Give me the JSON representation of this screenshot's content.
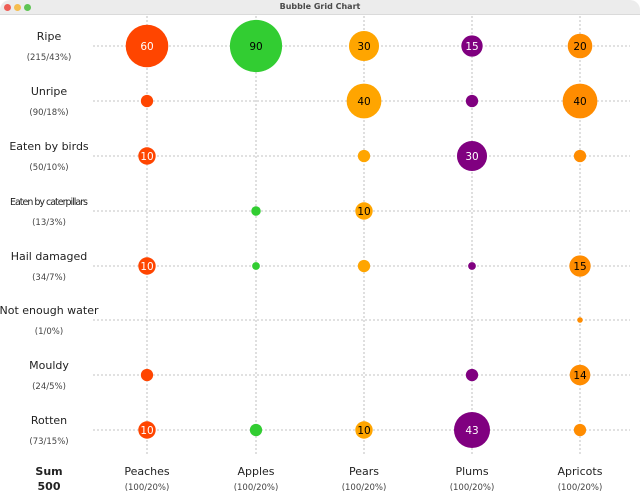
{
  "window": {
    "title": "Bubble Grid Chart"
  },
  "chart_data": {
    "type": "bubble-grid",
    "title": "Bubble Grid Chart",
    "rows": [
      {
        "label": "Ripe",
        "summary": "(215/43%)"
      },
      {
        "label": "Unripe",
        "summary": "(90/18%)"
      },
      {
        "label": "Eaten by birds",
        "summary": "(50/10%)"
      },
      {
        "label": "Eaten by caterpillars",
        "summary": "(13/3%)"
      },
      {
        "label": "Hail damaged",
        "summary": "(34/7%)"
      },
      {
        "label": "Not enough water",
        "summary": "(1/0%)"
      },
      {
        "label": "Mouldy",
        "summary": "(24/5%)"
      },
      {
        "label": "Rotten",
        "summary": "(73/15%)"
      }
    ],
    "columns": [
      {
        "label": "Peaches",
        "summary": "(100/20%)",
        "color": "#FF4500",
        "text_color": "#ffffff"
      },
      {
        "label": "Apples",
        "summary": "(100/20%)",
        "color": "#32CD32",
        "text_color": "#000000"
      },
      {
        "label": "Pears",
        "summary": "(100/20%)",
        "color": "#FFA500",
        "text_color": "#000000"
      },
      {
        "label": "Plums",
        "summary": "(100/20%)",
        "color": "#800080",
        "text_color": "#ffffff"
      },
      {
        "label": "Apricots",
        "summary": "(100/20%)",
        "color": "#FF8C00",
        "text_color": "#000000"
      }
    ],
    "values": [
      [
        60,
        90,
        30,
        15,
        20
      ],
      [
        5,
        0,
        40,
        5,
        40
      ],
      [
        10,
        0,
        5,
        30,
        5
      ],
      [
        0,
        3,
        10,
        0,
        0
      ],
      [
        10,
        2,
        5,
        2,
        15
      ],
      [
        0,
        0,
        0,
        0,
        1
      ],
      [
        5,
        0,
        0,
        5,
        14
      ],
      [
        10,
        5,
        10,
        43,
        5
      ]
    ],
    "label_threshold": 10,
    "sum_label": "Sum",
    "sum_value": "500",
    "grid": true
  }
}
